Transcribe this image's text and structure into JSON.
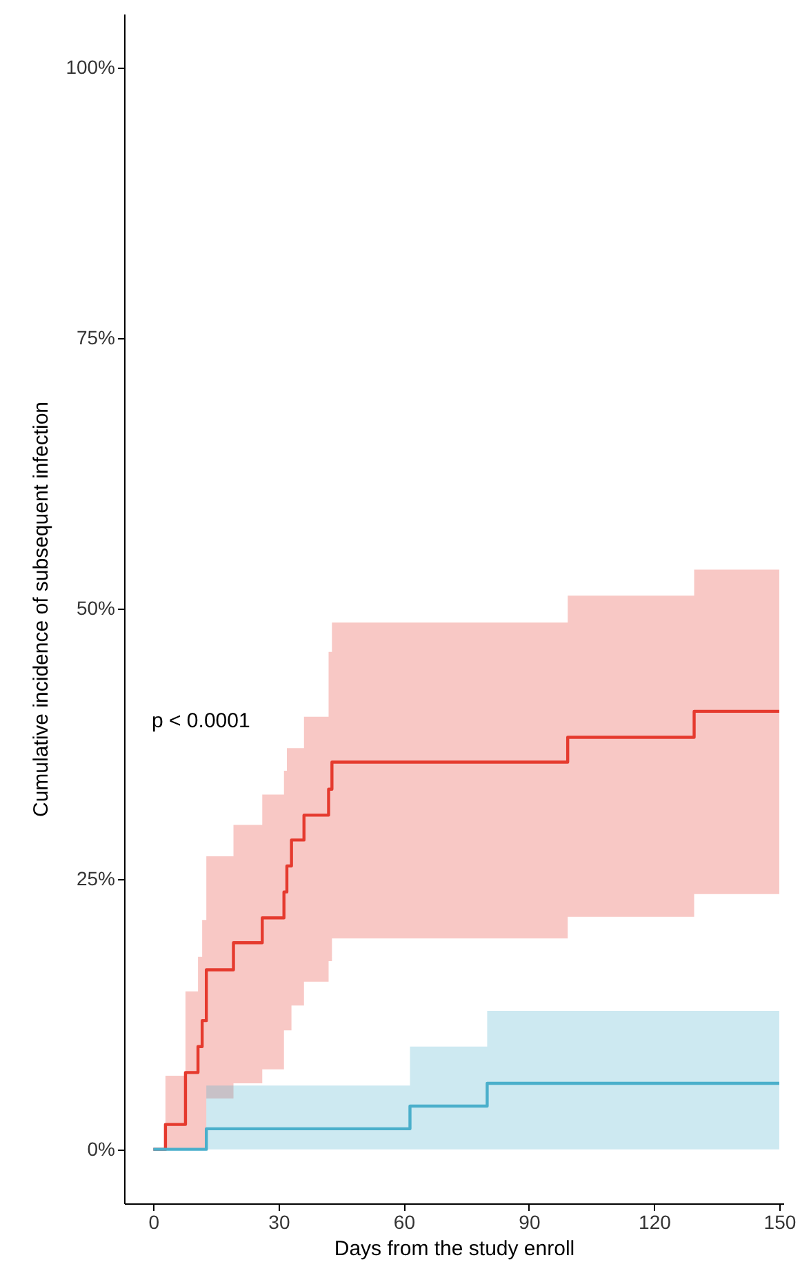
{
  "chart_data": {
    "type": "step",
    "xlabel": "Days from the study enroll",
    "ylabel": "Cumulative incidence of subsequent infection",
    "annotations": [
      "p < 0.0001"
    ],
    "xlim": [
      -7,
      151
    ],
    "ylim": [
      -5,
      105
    ],
    "xticks": [
      0,
      30,
      60,
      90,
      120,
      150
    ],
    "yticks": [
      {
        "value": 0,
        "label": "0%"
      },
      {
        "value": 25,
        "label": "25%"
      },
      {
        "value": 50,
        "label": "50%"
      },
      {
        "value": 75,
        "label": "75%"
      },
      {
        "value": 100,
        "label": "100%"
      }
    ],
    "series": [
      {
        "color": "#e53a2e",
        "x": [
          0,
          2.9,
          7.7,
          10.7,
          11.7,
          12.7,
          19.2,
          26.1,
          31.3,
          32.0,
          33.1,
          36.1,
          42.0,
          42.8,
          99.3,
          129.6,
          150
        ],
        "values": [
          0,
          2.3,
          7.1,
          9.5,
          11.9,
          16.6,
          19.1,
          21.4,
          23.8,
          26.2,
          28.6,
          30.9,
          33.3,
          35.8,
          38.1,
          40.5,
          40.5
        ],
        "lower": [
          0,
          0,
          0,
          0,
          0,
          4.7,
          6.1,
          7.4,
          11.0,
          11.0,
          13.3,
          15.5,
          17.4,
          19.5,
          21.5,
          23.6,
          23.6
        ],
        "upper": [
          0,
          6.8,
          14.6,
          17.8,
          21.2,
          27.1,
          30.0,
          32.8,
          35.0,
          37.1,
          37.1,
          40.0,
          46.0,
          48.7,
          51.2,
          53.6,
          53.6
        ]
      },
      {
        "color": "#4aafcb",
        "x": [
          0,
          12.7,
          61.5,
          80.0,
          150
        ],
        "values": [
          0,
          1.9,
          4.0,
          6.1,
          6.1
        ],
        "lower": [
          0,
          0,
          0,
          0,
          0
        ],
        "upper": [
          0,
          5.9,
          9.5,
          12.8,
          12.8
        ]
      }
    ]
  }
}
